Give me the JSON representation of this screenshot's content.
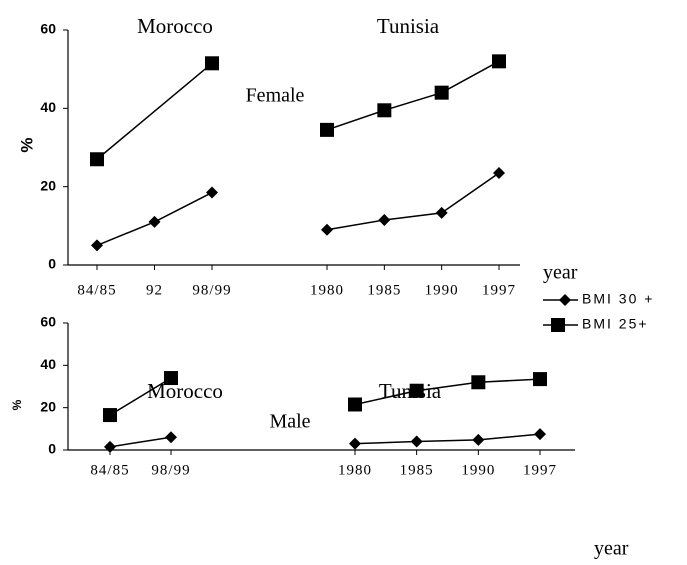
{
  "legend": [
    {
      "name": "BMI 30 +",
      "marker": "diamond",
      "color": "#000000"
    },
    {
      "name": "BMI 25+",
      "marker": "square",
      "color": "#000000"
    }
  ],
  "chart_data": [
    {
      "type": "line",
      "title": "Female",
      "ylabel": "%",
      "xlabel": "year",
      "ylim": [
        0,
        60
      ],
      "yticks": [
        0,
        20,
        40,
        60
      ],
      "groups": [
        {
          "name": "Morocco",
          "categories": [
            "84/85",
            "92",
            "98/99"
          ],
          "series": [
            {
              "values": [
                5,
                11,
                18.5
              ]
            },
            {
              "categories": [
                "84/85",
                "98/99"
              ],
              "values": [
                27,
                51.5
              ]
            }
          ]
        },
        {
          "name": "Tunisia",
          "categories": [
            "1980",
            "1985",
            "1990",
            "1997"
          ],
          "series": [
            {
              "values": [
                9,
                11.5,
                13.3,
                23.5
              ]
            },
            {
              "values": [
                34.5,
                39.5,
                44,
                52
              ]
            }
          ]
        }
      ]
    },
    {
      "type": "line",
      "title": "Male",
      "ylabel": "%",
      "xlabel": "year",
      "ylim": [
        0,
        60
      ],
      "yticks": [
        0,
        20,
        40,
        60
      ],
      "groups": [
        {
          "name": "Morocco",
          "categories": [
            "84/85",
            "98/99"
          ],
          "series": [
            {
              "values": [
                1.5,
                6
              ]
            },
            {
              "values": [
                16.5,
                34
              ]
            }
          ]
        },
        {
          "name": "Tunisia",
          "categories": [
            "1980",
            "1985",
            "1990",
            "1997"
          ],
          "series": [
            {
              "values": [
                3,
                4,
                4.8,
                7.5
              ]
            },
            {
              "values": [
                21.5,
                28,
                32,
                33.5
              ]
            }
          ]
        }
      ]
    }
  ]
}
